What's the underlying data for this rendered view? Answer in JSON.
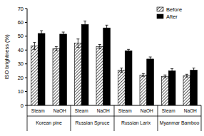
{
  "chart_data": {
    "type": "bar",
    "y_label": "ISO brightness (%)",
    "categories": [
      "Steam",
      "NaOH",
      "Steam",
      "NaOH",
      "Steam",
      "NaOH",
      "Steam",
      "NaOH"
    ],
    "groups": [
      "Korean pine",
      "Russian Spruce",
      "Russian Larix",
      "Myanmar Bamboo"
    ],
    "series": [
      {
        "name": "Before",
        "color": "#ffffff",
        "values": [
          43,
          41,
          45,
          42.5,
          25.5,
          22,
          21,
          21.5
        ],
        "errors": [
          2.5,
          1.5,
          3,
          1.5,
          1.5,
          1,
          1,
          1
        ]
      },
      {
        "name": "After",
        "color": "#000000",
        "values": [
          52,
          51.5,
          58.5,
          56,
          39.5,
          33.5,
          25,
          25.5
        ],
        "errors": [
          2,
          1.5,
          2.5,
          2,
          1,
          1.5,
          1.5,
          1.5
        ]
      }
    ],
    "ylim": [
      0,
      70
    ],
    "yticks": [
      0,
      10,
      20,
      30,
      40,
      50,
      60,
      70
    ],
    "legend": "top-right",
    "grid": false
  }
}
